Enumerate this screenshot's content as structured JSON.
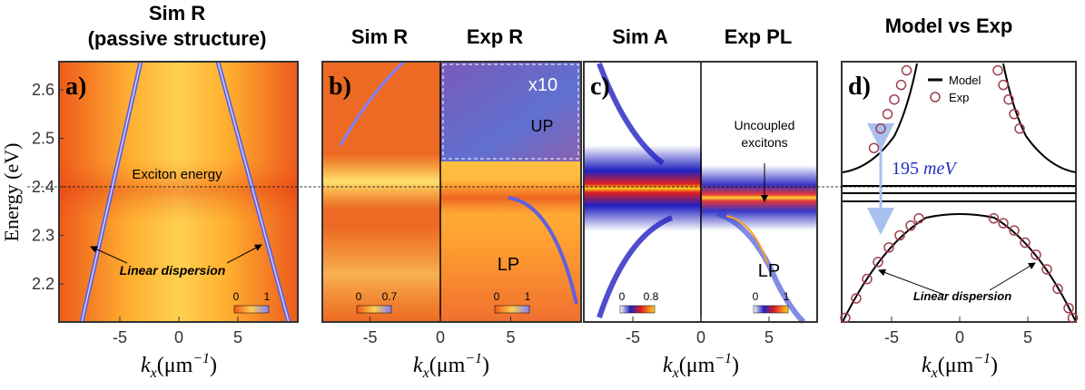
{
  "figure": {
    "y_label": "Energy (eV)",
    "y_ticks": [
      2.6,
      2.5,
      2.4,
      2.3,
      2.2
    ],
    "x_label": [
      "k",
      "x",
      "(μm",
      "−1",
      ")"
    ]
  },
  "panels": [
    {
      "letter": "a)",
      "titles": [
        "Sim R",
        "(passive structure)"
      ],
      "x_ticks": [
        -5,
        0,
        5
      ],
      "annotations": [
        "Exciton energy",
        "Linear dispersion"
      ],
      "colorbars": [
        [
          "0",
          "1"
        ]
      ]
    },
    {
      "letter": "b)",
      "titles": [
        "Sim R",
        "Exp R"
      ],
      "x_ticks": [
        -5,
        0,
        5
      ],
      "annotations": [
        "x10",
        "UP",
        "LP"
      ],
      "colorbars": [
        [
          "0",
          "0.7"
        ],
        [
          "0",
          "1"
        ]
      ]
    },
    {
      "letter": "c)",
      "titles": [
        "Sim A",
        "Exp PL"
      ],
      "x_ticks": [
        -5,
        0,
        5
      ],
      "annotations": [
        "Uncoupled",
        "excitons",
        "LP"
      ],
      "colorbars": [
        [
          "0",
          "0.8"
        ],
        [
          "0",
          "1"
        ]
      ]
    },
    {
      "letter": "d)",
      "titles": [
        "Model vs Exp"
      ],
      "x_ticks": [
        -5,
        0,
        5
      ],
      "annotations": [
        "195",
        "meV",
        "Linear dispersion"
      ],
      "legend": [
        "Model",
        "Exp"
      ],
      "exp_k": [
        -8.4,
        -7.6,
        -6.8,
        -6,
        -5.2,
        -4.4,
        -3.6,
        -3,
        2.5,
        3.2,
        4,
        4.8,
        5.6,
        6.4,
        7.2,
        8,
        8.3,
        -6.3,
        -5.8,
        -5.3,
        -4.8,
        -4.3,
        -3.9,
        2.8,
        3.2,
        3.6,
        4,
        4.4
      ],
      "exp_E": [
        2.13,
        2.17,
        2.21,
        2.245,
        2.275,
        2.3,
        2.32,
        2.335,
        2.335,
        2.325,
        2.31,
        2.285,
        2.26,
        2.23,
        2.19,
        2.15,
        2.13,
        2.48,
        2.52,
        2.55,
        2.58,
        2.61,
        2.64,
        2.64,
        2.61,
        2.58,
        2.55,
        2.52
      ]
    }
  ]
}
